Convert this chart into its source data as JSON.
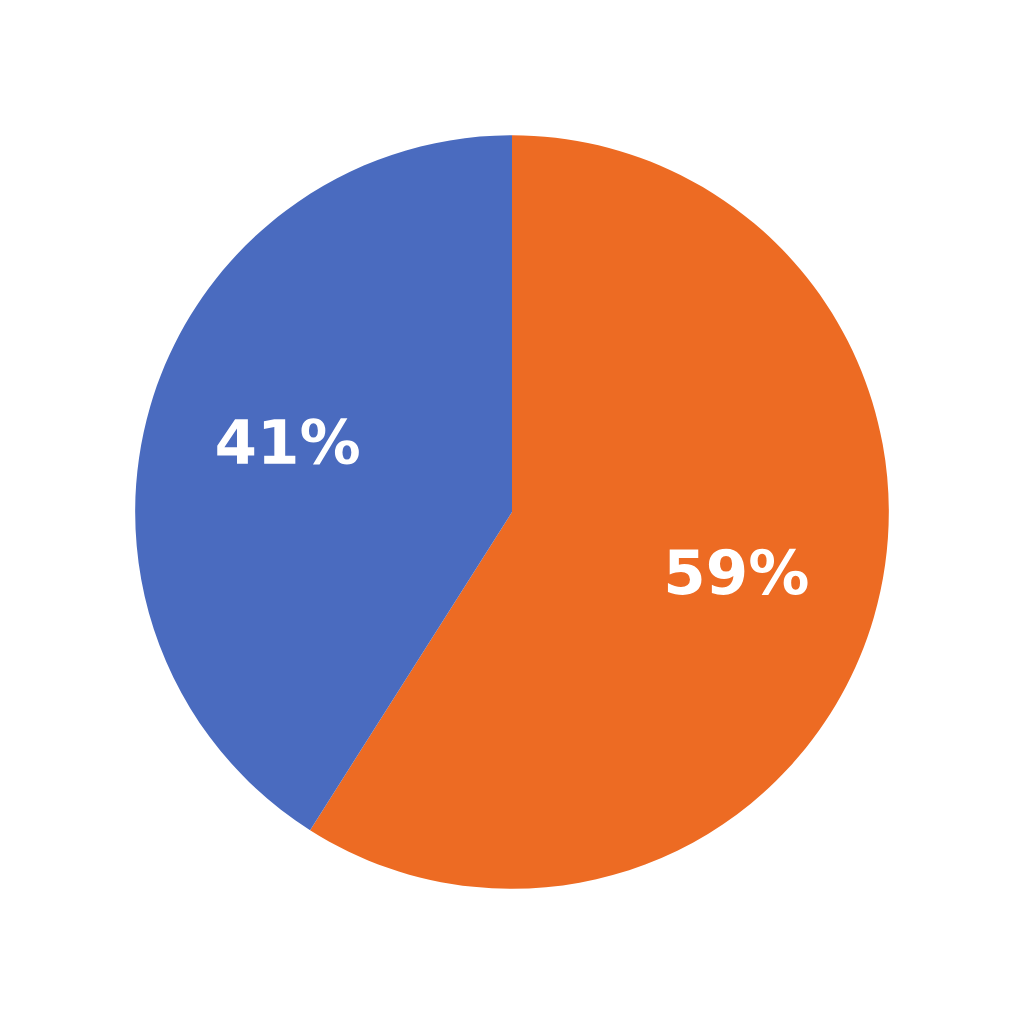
{
  "chart_data": {
    "type": "pie",
    "categories": [
      null,
      null
    ],
    "values": [
      59,
      41
    ],
    "colors": [
      "#ed6b23",
      "#4a6bbf"
    ],
    "value_labels": [
      "59%",
      "41%"
    ]
  }
}
